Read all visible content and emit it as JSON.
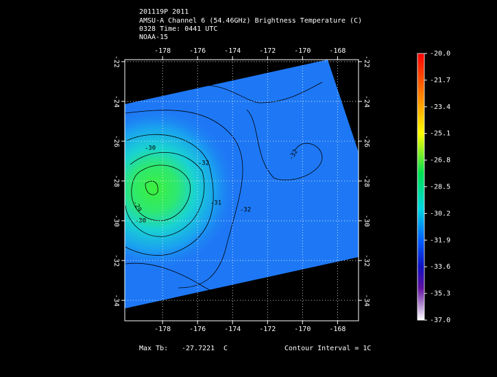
{
  "header": {
    "lines": [
      "201119P 2011",
      "AMSU-A Channel 6 (54.46GHz) Brightness Temperature (C)",
      "0328 Time: 0441 UTC",
      "NOAA-15"
    ]
  },
  "map": {
    "xlim": [
      -180.16,
      -166.8
    ],
    "ylim": [
      -35.03,
      -21.9
    ],
    "xticks": [
      -178,
      -176,
      -174,
      -172,
      -170,
      -168
    ],
    "yticks": [
      -22,
      -24,
      -26,
      -28,
      -30,
      -32,
      -34
    ],
    "contour_labels": [
      "-30",
      "-29",
      "-30",
      "-31",
      "-32",
      "-32",
      "-32"
    ]
  },
  "colorbar": {
    "lim": [
      -37,
      -20
    ],
    "ticks": [
      {
        "value": -20,
        "label": "-20.0"
      },
      {
        "value": -21.7,
        "label": "-21.7"
      },
      {
        "value": -23.4,
        "label": "-23.4"
      },
      {
        "value": -25.1,
        "label": "-25.1"
      },
      {
        "value": -26.8,
        "label": "-26.8"
      },
      {
        "value": -28.5,
        "label": "-28.5"
      },
      {
        "value": -30.2,
        "label": "-30.2"
      },
      {
        "value": -31.9,
        "label": "-31.9"
      },
      {
        "value": -33.6,
        "label": "-33.6"
      },
      {
        "value": -35.3,
        "label": "-35.3"
      },
      {
        "value": -37,
        "label": "-37.0"
      }
    ]
  },
  "footer": {
    "max_label": "Max Tb:",
    "max_value": "-27.7221",
    "unit": "C",
    "interval": "Contour Interval = 1C"
  }
}
